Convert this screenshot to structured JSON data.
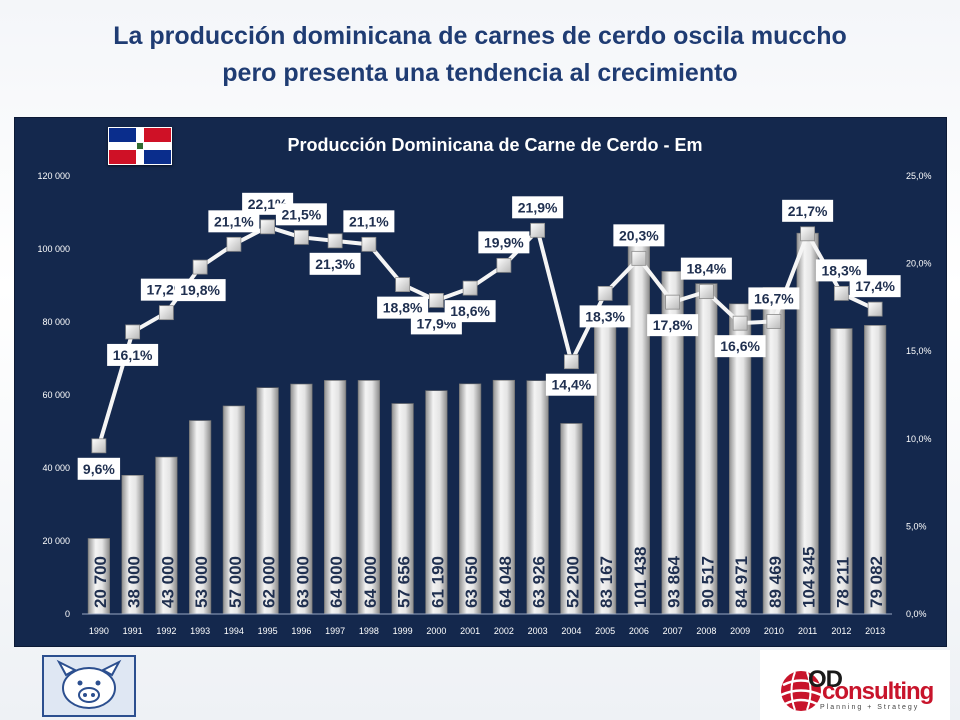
{
  "slide": {
    "title_line1": "La producción dominicana de carnes de cerdo oscila muccho",
    "title_line2": "pero presenta una tendencia al crecimiento"
  },
  "logos": {
    "brand_od": "OD",
    "brand_consulting": "consulting",
    "brand_tagline": "Planning + Strategy"
  },
  "colors": {
    "panel_bg": "#14284d",
    "bar_light": "#f2f2f2",
    "bar_dark": "#9c9c9c",
    "line": "#f5f5f5",
    "label_bg": "#ffffff",
    "text_dark": "#1f2f4f"
  },
  "chart_data": {
    "type": "bar",
    "title": "Producción Dominicana de Carne de Cerdo - Em",
    "categories": [
      "1990",
      "1991",
      "1992",
      "1993",
      "1994",
      "1995",
      "1996",
      "1997",
      "1998",
      "1999",
      "2000",
      "2001",
      "2002",
      "2003",
      "2004",
      "2005",
      "2006",
      "2007",
      "2008",
      "2009",
      "2010",
      "2011",
      "2012",
      "2013"
    ],
    "series": [
      {
        "name": "Producción",
        "type": "bar",
        "axis": "left",
        "values": [
          20700,
          38000,
          43000,
          53000,
          57000,
          62000,
          63000,
          64000,
          64000,
          57656,
          61190,
          63050,
          64048,
          63926,
          52200,
          83167,
          101438,
          93864,
          90517,
          84971,
          89469,
          104345,
          78211,
          79082
        ],
        "labels": [
          "20 700",
          "38 000",
          "43 000",
          "53 000",
          "57 000",
          "62 000",
          "63 000",
          "64 000",
          "64 000",
          "57 656",
          "61 190",
          "63 050",
          "64 048",
          "63 926",
          "52 200",
          "83 167",
          "101 438",
          "93 864",
          "90 517",
          "84 971",
          "89 469",
          "104 345",
          "78 211",
          "79 082"
        ]
      },
      {
        "name": "Porcentaje",
        "type": "line",
        "axis": "right",
        "values": [
          9.6,
          16.1,
          17.2,
          19.8,
          21.1,
          22.1,
          21.5,
          21.3,
          21.1,
          18.8,
          17.9,
          18.6,
          19.9,
          21.9,
          14.4,
          18.3,
          20.3,
          17.8,
          18.4,
          16.6,
          16.7,
          21.7,
          18.3,
          17.4
        ],
        "labels": [
          "9,6%",
          "16,1%",
          "17,2%",
          "19,8%",
          "21,1%",
          "22,1%",
          "21,5%",
          "21,3%",
          "21,1%",
          "18,8%",
          "17,9%",
          "18,6%",
          "19,9%",
          "21,9%",
          "14,4%",
          "18,3%",
          "20,3%",
          "17,8%",
          "18,4%",
          "16,6%",
          "16,7%",
          "21,7%",
          "18,3%",
          "17,4%"
        ]
      }
    ],
    "y_left": {
      "ylim": [
        0,
        120000
      ],
      "ticks": [
        0,
        20000,
        40000,
        60000,
        80000,
        100000,
        120000
      ],
      "tick_labels": [
        "0",
        "20 000",
        "40 000",
        "60 000",
        "80 000",
        "100 000",
        "120 000"
      ]
    },
    "y_right": {
      "ylim": [
        0,
        25
      ],
      "ticks": [
        0,
        5,
        10,
        15,
        20,
        25
      ],
      "tick_labels": [
        "0,0%",
        "5,0%",
        "10,0%",
        "15,0%",
        "20,0%",
        "25,0%"
      ]
    },
    "grid": false,
    "legend": "none"
  }
}
